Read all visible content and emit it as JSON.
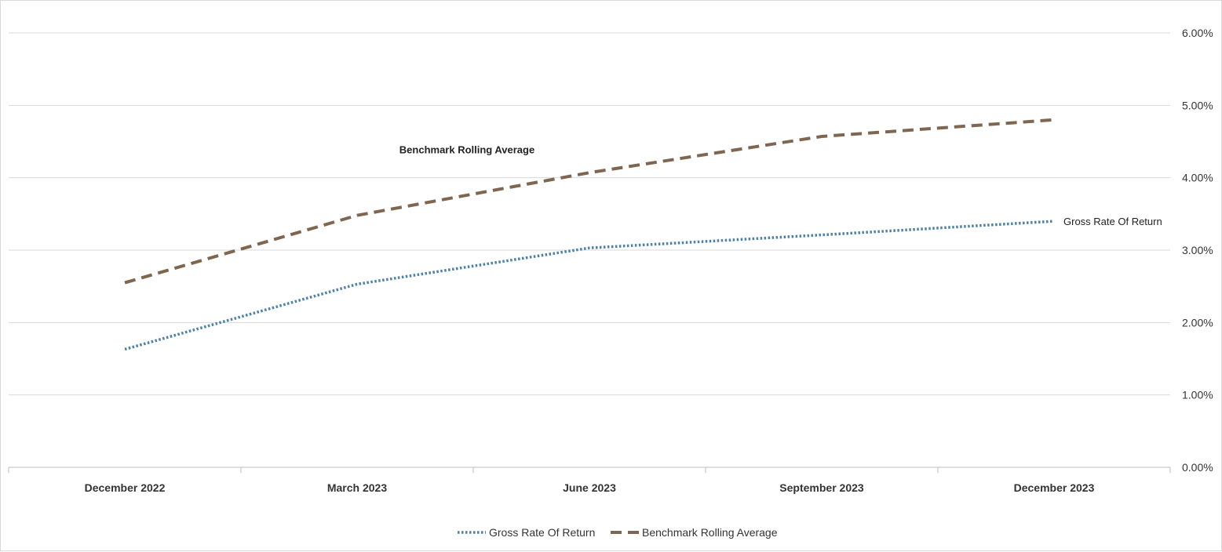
{
  "chart_data": {
    "type": "line",
    "title": "",
    "xlabel": "",
    "ylabel": "",
    "categories": [
      "December 2022",
      "March 2023",
      "June 2023",
      "September 2023",
      "December 2023"
    ],
    "ylim": [
      0,
      6
    ],
    "yticks": [
      0,
      1,
      2,
      3,
      4,
      5,
      6
    ],
    "ytick_labels": [
      "0.00%",
      "1.00%",
      "2.00%",
      "3.00%",
      "4.00%",
      "5.00%",
      "6.00%"
    ],
    "y_axis_position": "right",
    "grid": true,
    "legend_position": "bottom",
    "series": [
      {
        "name": "Gross Rate Of Return",
        "values": [
          1.63,
          2.53,
          3.03,
          3.21,
          3.4
        ],
        "color": "#4e81a6",
        "style": "dotted"
      },
      {
        "name": "Benchmark Rolling Average",
        "values": [
          2.55,
          3.48,
          4.07,
          4.57,
          4.8
        ],
        "color": "#7f6650",
        "style": "dashed"
      }
    ],
    "annotations": [
      {
        "text": "Benchmark Rolling Average",
        "series": 1
      },
      {
        "text": "Gross Rate Of Return",
        "series": 0
      }
    ],
    "legend": [
      "Gross Rate Of Return",
      "Benchmark Rolling Average"
    ]
  }
}
